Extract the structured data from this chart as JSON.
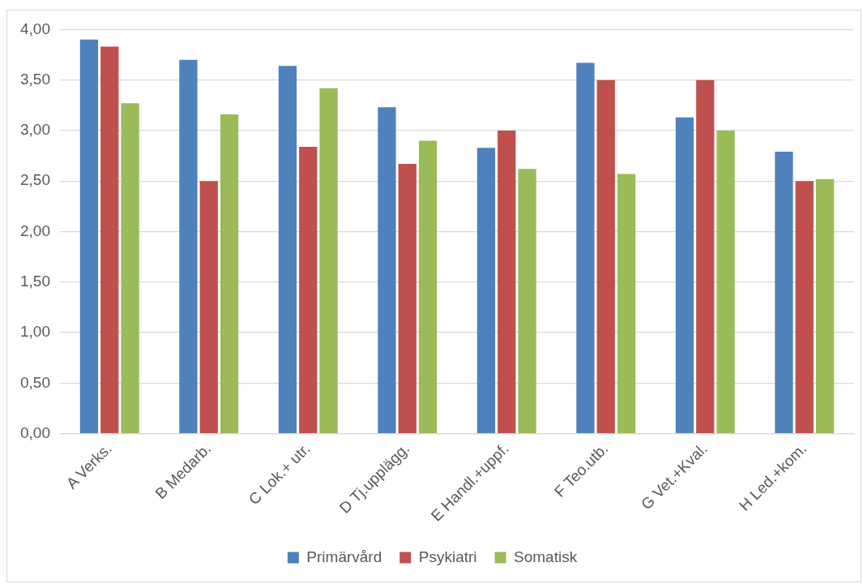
{
  "chart_data": {
    "type": "bar",
    "categories": [
      "A Verks.",
      "B Medarb.",
      "C Lok.+ utr.",
      "D Tj.upplägg.",
      "E Handl.+uppf.",
      "F Teo.utb.",
      "G Vet.+Kval.",
      "H Led.+kom."
    ],
    "series": [
      {
        "name": "Primärvård",
        "color": "#4f81bd",
        "values": [
          3.9,
          3.7,
          3.64,
          3.23,
          2.83,
          3.67,
          3.13,
          2.79
        ]
      },
      {
        "name": "Psykiatri",
        "color": "#c0504d",
        "values": [
          3.83,
          2.5,
          2.84,
          2.67,
          3.0,
          3.5,
          3.5,
          2.5
        ]
      },
      {
        "name": "Somatisk",
        "color": "#9bbb59",
        "values": [
          3.27,
          3.16,
          3.42,
          2.9,
          2.62,
          2.57,
          3.0,
          2.52
        ]
      }
    ],
    "ylim": [
      0,
      4
    ],
    "yticks": [
      {
        "value": 0,
        "label": "0,00"
      },
      {
        "value": 0.5,
        "label": "0,50"
      },
      {
        "value": 1,
        "label": "1,00"
      },
      {
        "value": 1.5,
        "label": "1,50"
      },
      {
        "value": 2,
        "label": "2,00"
      },
      {
        "value": 2.5,
        "label": "2,50"
      },
      {
        "value": 3,
        "label": "3,00"
      },
      {
        "value": 3.5,
        "label": "3,50"
      },
      {
        "value": 4,
        "label": "4,00"
      }
    ],
    "grid": "y",
    "legend": "bottom"
  }
}
